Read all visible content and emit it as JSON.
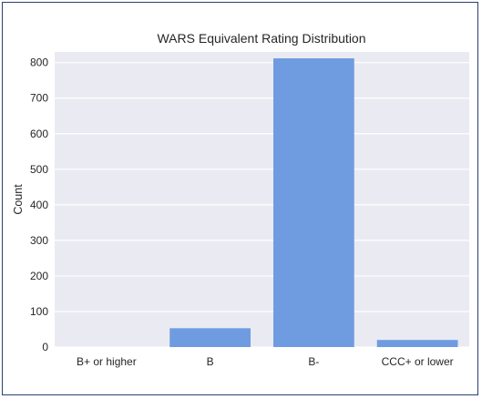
{
  "chart_data": {
    "type": "bar",
    "title": "WARS Equivalent Rating Distribution",
    "xlabel": "",
    "ylabel": "Count",
    "categories": [
      "B+ or higher",
      "B",
      "B-",
      "CCC+ or lower"
    ],
    "values": [
      0,
      53,
      812,
      20
    ],
    "ylim": [
      0,
      830
    ],
    "yticks": [
      0,
      100,
      200,
      300,
      400,
      500,
      600,
      700,
      800
    ],
    "grid": true,
    "colors": {
      "bar": "#6f9be0",
      "plot_background": "#eaeaf2",
      "grid": "#ffffff",
      "frame": "#2d3f73"
    }
  }
}
